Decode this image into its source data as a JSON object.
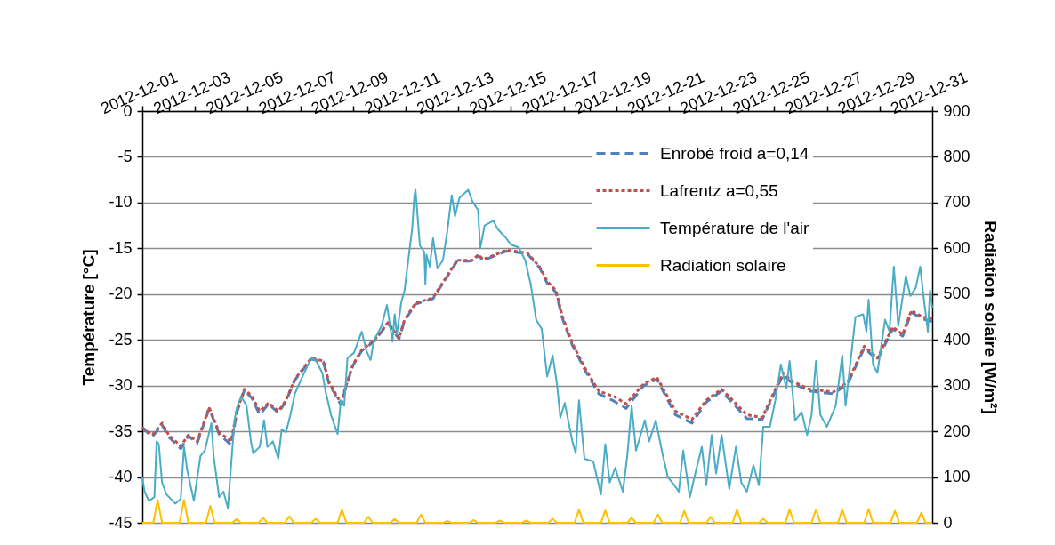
{
  "chart_data": {
    "type": "line",
    "ylabel": "Température [°C]",
    "y2label": "Radiation solaire [W/m²]",
    "xlim": [
      "2012-12-01",
      "2012-12-31"
    ],
    "xticks": [
      "2012-12-01",
      {
        "value": "2012-12-02",
        "label": null
      },
      "2012-12-03",
      {
        "value": "2012-12-04",
        "label": null
      },
      "2012-12-05",
      {
        "value": "2012-12-06",
        "label": null
      },
      "2012-12-07",
      {
        "value": "2012-12-08",
        "label": null
      },
      "2012-12-09",
      {
        "value": "2012-12-10",
        "label": null
      },
      "2012-12-11",
      {
        "value": "2012-12-12",
        "label": null
      },
      "2012-12-13",
      {
        "value": "2012-12-14",
        "label": null
      },
      "2012-12-15",
      {
        "value": "2012-12-16",
        "label": null
      },
      "2012-12-17",
      {
        "value": "2012-12-18",
        "label": null
      },
      "2012-12-19",
      {
        "value": "2012-12-20",
        "label": null
      },
      "2012-12-21",
      {
        "value": "2012-12-22",
        "label": null
      },
      "2012-12-23",
      {
        "value": "2012-12-24",
        "label": null
      },
      "2012-12-25",
      {
        "value": "2012-12-26",
        "label": null
      },
      "2012-12-27",
      {
        "value": "2012-12-28",
        "label": null
      },
      "2012-12-29",
      {
        "value": "2012-12-30",
        "label": null
      },
      "2012-12-31"
    ],
    "ylim": [
      -45,
      0
    ],
    "yticks": [
      -45,
      -40,
      -35,
      -30,
      -25,
      -20,
      -15,
      -10,
      -5,
      0
    ],
    "y2lim": [
      0,
      900
    ],
    "y2ticks": [
      0,
      100,
      200,
      300,
      400,
      500,
      600,
      700,
      800,
      900
    ],
    "grid": "y",
    "legend": "top right",
    "series": [
      {
        "name": "Enrobé froid a=0,14",
        "color": "#4f81bd",
        "line_style": "dashed",
        "x": [
          "2012-12-01T00:00",
          "2012-12-01T09:00",
          "2012-12-01T18:00",
          "2012-12-02T00:00",
          "2012-12-02T11:00",
          "2012-12-02T18:00",
          "2012-12-03T02:00",
          "2012-12-03T13:00",
          "2012-12-03T22:00",
          "2012-12-04T09:00",
          "2012-12-04T14:00",
          "2012-12-04T21:00",
          "2012-12-05T04:00",
          "2012-12-05T11:00",
          "2012-12-05T19:00",
          "2012-12-06T04:00",
          "2012-12-06T11:00",
          "2012-12-06T19:00",
          "2012-12-07T10:00",
          "2012-12-07T21:00",
          "2012-12-08T02:00",
          "2012-12-08T13:00",
          "2012-12-08T18:00",
          "2012-12-09T00:00",
          "2012-12-09T08:00",
          "2012-12-09T19:00",
          "2012-12-10T08:00",
          "2012-12-10T18:00",
          "2012-12-10T23:00",
          "2012-12-11T09:00",
          "2012-12-12T01:00",
          "2012-12-12T09:00",
          "2012-12-12T23:00",
          "2012-12-13T13:00",
          "2012-12-13T18:00",
          "2012-12-13T23:00",
          "2012-12-14T20:00",
          "2012-12-15T15:00",
          "2012-12-16T02:00",
          "2012-12-16T09:00",
          "2012-12-16T17:00",
          "2012-12-16T23:00",
          "2012-12-17T08:00",
          "2012-12-17T19:00",
          "2012-12-18T08:00",
          "2012-12-18T22:00",
          "2012-12-19T09:00",
          "2012-12-20T01:00",
          "2012-12-20T13:00",
          "2012-12-21T06:00",
          "2012-12-21T21:00",
          "2012-12-22T10:00",
          "2012-12-23T00:00",
          "2012-12-23T10:00",
          "2012-12-23T23:00",
          "2012-12-24T13:00",
          "2012-12-25T08:00",
          "2012-12-25T16:00",
          "2012-12-26T08:00",
          "2012-12-27T06:00",
          "2012-12-27T19:00",
          "2012-12-28T10:00",
          "2012-12-28T22:00",
          "2012-12-29T12:00",
          "2012-12-29T21:00",
          "2012-12-30T05:00",
          "2012-12-30T15:00",
          "2012-12-31T00:00"
        ],
        "values": [
          -34.6,
          -35.6,
          -34.3,
          -35.6,
          -36.9,
          -35.5,
          -36.3,
          -32.5,
          -35.3,
          -36.5,
          -33.0,
          -30.5,
          -31.4,
          -33.2,
          -32.0,
          -33.0,
          -31.7,
          -29.4,
          -27.1,
          -27.4,
          -29.7,
          -32.1,
          -30.0,
          -27.8,
          -26.2,
          -25.2,
          -23.2,
          -24.9,
          -22.9,
          -21.1,
          -20.5,
          -19.0,
          -16.4,
          -16.4,
          -15.8,
          -16.3,
          -15.3,
          -15.6,
          -17.1,
          -18.8,
          -19.8,
          -22.7,
          -25.6,
          -28.2,
          -30.9,
          -31.7,
          -32.5,
          -30.0,
          -29.3,
          -33.2,
          -34.1,
          -31.8,
          -30.6,
          -31.9,
          -33.6,
          -33.7,
          -28.8,
          -29.7,
          -30.6,
          -30.9,
          -29.8,
          -25.9,
          -27.2,
          -23.8,
          -24.6,
          -22.0,
          -22.7,
          -23.0
        ]
      },
      {
        "name": "Lafrentz a=0,55",
        "color": "#c0504d",
        "line_style": "dotted",
        "x": [
          "2012-12-01T00:00",
          "2012-12-01T09:00",
          "2012-12-01T18:00",
          "2012-12-02T00:00",
          "2012-12-02T11:00",
          "2012-12-02T18:00",
          "2012-12-03T02:00",
          "2012-12-03T13:00",
          "2012-12-03T22:00",
          "2012-12-04T09:00",
          "2012-12-04T14:00",
          "2012-12-04T21:00",
          "2012-12-05T04:00",
          "2012-12-05T11:00",
          "2012-12-05T19:00",
          "2012-12-06T04:00",
          "2012-12-06T11:00",
          "2012-12-06T19:00",
          "2012-12-07T10:00",
          "2012-12-07T21:00",
          "2012-12-08T02:00",
          "2012-12-08T13:00",
          "2012-12-08T18:00",
          "2012-12-09T00:00",
          "2012-12-09T08:00",
          "2012-12-09T19:00",
          "2012-12-10T08:00",
          "2012-12-10T18:00",
          "2012-12-10T23:00",
          "2012-12-11T09:00",
          "2012-12-12T01:00",
          "2012-12-12T09:00",
          "2012-12-12T23:00",
          "2012-12-13T13:00",
          "2012-12-13T18:00",
          "2012-12-13T23:00",
          "2012-12-14T20:00",
          "2012-12-15T15:00",
          "2012-12-16T02:00",
          "2012-12-16T09:00",
          "2012-12-16T17:00",
          "2012-12-16T23:00",
          "2012-12-17T08:00",
          "2012-12-17T19:00",
          "2012-12-18T08:00",
          "2012-12-18T22:00",
          "2012-12-19T09:00",
          "2012-12-20T01:00",
          "2012-12-20T13:00",
          "2012-12-21T06:00",
          "2012-12-21T21:00",
          "2012-12-22T10:00",
          "2012-12-23T00:00",
          "2012-12-23T10:00",
          "2012-12-23T23:00",
          "2012-12-24T13:00",
          "2012-12-25T08:00",
          "2012-12-25T16:00",
          "2012-12-26T08:00",
          "2012-12-27T06:00",
          "2012-12-27T19:00",
          "2012-12-28T10:00",
          "2012-12-28T22:00",
          "2012-12-29T12:00",
          "2012-12-29T21:00",
          "2012-12-30T05:00",
          "2012-12-30T15:00",
          "2012-12-31T00:00"
        ],
        "values": [
          -34.6,
          -35.4,
          -34.1,
          -35.4,
          -36.6,
          -35.4,
          -36.1,
          -32.4,
          -35.1,
          -36.1,
          -32.8,
          -30.4,
          -31.2,
          -32.8,
          -31.9,
          -32.8,
          -31.6,
          -29.3,
          -27.0,
          -27.3,
          -29.6,
          -31.9,
          -29.9,
          -27.7,
          -26.1,
          -25.1,
          -23.1,
          -24.8,
          -22.8,
          -21.0,
          -20.4,
          -18.9,
          -16.3,
          -16.3,
          -15.7,
          -16.2,
          -15.2,
          -15.5,
          -17.0,
          -18.6,
          -19.6,
          -22.5,
          -25.4,
          -28.0,
          -30.6,
          -31.2,
          -32.0,
          -29.8,
          -29.1,
          -32.8,
          -33.7,
          -31.6,
          -30.4,
          -31.6,
          -33.2,
          -33.5,
          -28.6,
          -29.5,
          -30.4,
          -30.7,
          -29.6,
          -25.7,
          -27.0,
          -23.6,
          -24.4,
          -21.8,
          -22.5,
          -22.7
        ]
      },
      {
        "name": "Température de l'air",
        "color": "#4bacc6",
        "line_style": "solid",
        "x": [
          "2012-12-01T00:00",
          "2012-12-01T02:00",
          "2012-12-01T06:00",
          "2012-12-01T11:00",
          "2012-12-01T13:00",
          "2012-12-01T15:00",
          "2012-12-01T18:00",
          "2012-12-01T22:00",
          "2012-12-02T06:00",
          "2012-12-02T11:00",
          "2012-12-02T14:00",
          "2012-12-02T17:00",
          "2012-12-02T23:00",
          "2012-12-03T05:00",
          "2012-12-03T09:00",
          "2012-12-03T15:00",
          "2012-12-03T17:00",
          "2012-12-03T22:00",
          "2012-12-04T02:00",
          "2012-12-04T06:00",
          "2012-12-04T12:00",
          "2012-12-04T14:00",
          "2012-12-04T18:00",
          "2012-12-04T23:00",
          "2012-12-05T03:00",
          "2012-12-05T05:00",
          "2012-12-05T11:00",
          "2012-12-05T15:00",
          "2012-12-05T18:00",
          "2012-12-05T23:00",
          "2012-12-06T04:00",
          "2012-12-06T07:00",
          "2012-12-06T11:00",
          "2012-12-06T15:00",
          "2012-12-06T19:00",
          "2012-12-07T02:00",
          "2012-12-07T10:00",
          "2012-12-07T14:00",
          "2012-12-07T20:00",
          "2012-12-07T23:00",
          "2012-12-08T04:00",
          "2012-12-08T10:00",
          "2012-12-08T13:00",
          "2012-12-08T16:00",
          "2012-12-08T19:00",
          "2012-12-09T01:00",
          "2012-12-09T08:00",
          "2012-12-09T12:00",
          "2012-12-09T16:00",
          "2012-12-09T19:00",
          "2012-12-10T02:00",
          "2012-12-10T07:00",
          "2012-12-10T12:00",
          "2012-12-10T14:00",
          "2012-12-10T16:00",
          "2012-12-10T20:00",
          "2012-12-10T23:00",
          "2012-12-11T06:00",
          "2012-12-11T08:00",
          "2012-12-11T09:00",
          "2012-12-11T13:00",
          "2012-12-11T17:00",
          "2012-12-11T18:00",
          "2012-12-11T19:00",
          "2012-12-11T22:00",
          "2012-12-12T01:00",
          "2012-12-12T05:00",
          "2012-12-12T10:00",
          "2012-12-12T14:00",
          "2012-12-12T18:00",
          "2012-12-12T21:00",
          "2012-12-13T01:00",
          "2012-12-13T09:00",
          "2012-12-13T13:00",
          "2012-12-13T18:00",
          "2012-12-13T20:00",
          "2012-12-14T00:00",
          "2012-12-14T08:00",
          "2012-12-14T12:00",
          "2012-12-14T19:00",
          "2012-12-15T00:00",
          "2012-12-15T07:00",
          "2012-12-15T13:00",
          "2012-12-15T18:00",
          "2012-12-15T23:00",
          "2012-12-16T04:00",
          "2012-12-16T09:00",
          "2012-12-16T14:00",
          "2012-12-16T18:00",
          "2012-12-16T21:00",
          "2012-12-17T01:00",
          "2012-12-17T08:00",
          "2012-12-17T11:00",
          "2012-12-17T14:00",
          "2012-12-17T19:00",
          "2012-12-18T03:00",
          "2012-12-18T10:00",
          "2012-12-18T14:00",
          "2012-12-18T18:00",
          "2012-12-18T23:00",
          "2012-12-19T06:00",
          "2012-12-19T10:00",
          "2012-12-19T14:00",
          "2012-12-19T18:00",
          "2012-12-20T02:00",
          "2012-12-20T06:00",
          "2012-12-20T12:00",
          "2012-12-20T18:00",
          "2012-12-20T23:00",
          "2012-12-21T05:00",
          "2012-12-21T09:00",
          "2012-12-21T13:00",
          "2012-12-21T19:00",
          "2012-12-22T00:00",
          "2012-12-22T06:00",
          "2012-12-22T10:00",
          "2012-12-22T15:00",
          "2012-12-22T19:00",
          "2012-12-23T00:00",
          "2012-12-23T07:00",
          "2012-12-23T13:00",
          "2012-12-23T18:00",
          "2012-12-23T23:00",
          "2012-12-24T05:00",
          "2012-12-24T10:00",
          "2012-12-24T14:00",
          "2012-12-24T20:00",
          "2012-12-25T01:00",
          "2012-12-25T06:00",
          "2012-12-25T11:00",
          "2012-12-25T14:00",
          "2012-12-25T19:00",
          "2012-12-26T01:00",
          "2012-12-26T06:00",
          "2012-12-26T10:00",
          "2012-12-26T14:00",
          "2012-12-26T18:00",
          "2012-12-27T00:00",
          "2012-12-27T08:00",
          "2012-12-27T14:00",
          "2012-12-27T17:00",
          "2012-12-28T02:00",
          "2012-12-28T09:00",
          "2012-12-28T12:00",
          "2012-12-28T14:00",
          "2012-12-28T18:00",
          "2012-12-28T22:00",
          "2012-12-29T05:00",
          "2012-12-29T09:00",
          "2012-12-29T13:00",
          "2012-12-29T17:00",
          "2012-12-30T00:00",
          "2012-12-30T04:00",
          "2012-12-30T09:00",
          "2012-12-30T13:00",
          "2012-12-30T16:00",
          "2012-12-30T20:00",
          "2012-12-30T22:00",
          "2012-12-31T00:00"
        ],
        "values": [
          -40.0,
          -41.6,
          -42.6,
          -42.2,
          -36.1,
          -36.4,
          -40.6,
          -41.9,
          -42.9,
          -42.4,
          -36.7,
          -39.3,
          -42.6,
          -37.7,
          -37.1,
          -34.1,
          -37.7,
          -42.2,
          -41.6,
          -43.4,
          -33.8,
          -32.5,
          -31.2,
          -32.2,
          -36.1,
          -37.4,
          -36.7,
          -33.8,
          -36.7,
          -36.1,
          -38.0,
          -34.8,
          -35.1,
          -33.2,
          -30.9,
          -29.0,
          -27.0,
          -27.2,
          -28.6,
          -30.6,
          -33.2,
          -35.3,
          -31.6,
          -32.2,
          -27.0,
          -26.4,
          -24.1,
          -26.1,
          -27.2,
          -25.1,
          -23.5,
          -21.2,
          -25.2,
          -22.2,
          -24.4,
          -20.9,
          -19.6,
          -12.8,
          -9.2,
          -8.6,
          -14.7,
          -15.4,
          -18.9,
          -15.7,
          -17.0,
          -13.9,
          -17.2,
          -16.3,
          -13.1,
          -9.2,
          -11.5,
          -9.5,
          -8.6,
          -9.9,
          -10.8,
          -15.0,
          -12.5,
          -12.0,
          -12.9,
          -13.8,
          -14.6,
          -14.9,
          -16.3,
          -18.9,
          -22.8,
          -23.8,
          -29.0,
          -26.7,
          -29.9,
          -33.5,
          -31.9,
          -36.1,
          -37.4,
          -31.6,
          -38.0,
          -38.3,
          -41.9,
          -36.4,
          -40.6,
          -39.0,
          -41.6,
          -37.7,
          -32.2,
          -37.1,
          -33.8,
          -36.1,
          -33.8,
          -37.4,
          -40.0,
          -40.9,
          -41.6,
          -37.1,
          -42.2,
          -39.6,
          -36.7,
          -40.9,
          -35.4,
          -39.6,
          -35.4,
          -41.3,
          -36.7,
          -40.6,
          -41.6,
          -38.7,
          -40.9,
          -34.5,
          -34.5,
          -31.6,
          -27.7,
          -30.3,
          -27.3,
          -33.8,
          -32.9,
          -35.4,
          -33.2,
          -27.3,
          -33.2,
          -34.5,
          -32.2,
          -26.7,
          -32.2,
          -22.5,
          -22.2,
          -24.1,
          -20.6,
          -27.7,
          -28.6,
          -22.8,
          -24.1,
          -17.0,
          -23.5,
          -18.0,
          -20.2,
          -19.3,
          -17.0,
          -20.2,
          -24.1,
          -19.6,
          -21.5
        ]
      },
      {
        "name": "Radiation solaire",
        "color": "#ffc000",
        "line_style": "solid",
        "axis": "y2",
        "x": [
          "2012-12-01T00:00",
          "2012-12-01T10:00",
          "2012-12-01T14:00",
          "2012-12-01T18:00",
          "2012-12-02T10:00",
          "2012-12-02T14:00",
          "2012-12-02T18:00",
          "2012-12-03T10:00",
          "2012-12-03T14:00",
          "2012-12-03T18:00",
          "2012-12-04T10:00",
          "2012-12-04T14:00",
          "2012-12-04T18:00",
          "2012-12-05T10:00",
          "2012-12-05T14:00",
          "2012-12-05T18:00",
          "2012-12-06T10:00",
          "2012-12-06T14:00",
          "2012-12-06T18:00",
          "2012-12-07T10:00",
          "2012-12-07T14:00",
          "2012-12-07T18:00",
          "2012-12-08T10:00",
          "2012-12-08T14:00",
          "2012-12-08T18:00",
          "2012-12-09T10:00",
          "2012-12-09T14:00",
          "2012-12-09T18:00",
          "2012-12-10T10:00",
          "2012-12-10T14:00",
          "2012-12-10T18:00",
          "2012-12-11T10:00",
          "2012-12-11T14:00",
          "2012-12-11T18:00",
          "2012-12-12T10:00",
          "2012-12-12T14:00",
          "2012-12-12T18:00",
          "2012-12-13T10:00",
          "2012-12-13T14:00",
          "2012-12-13T18:00",
          "2012-12-14T10:00",
          "2012-12-14T14:00",
          "2012-12-14T18:00",
          "2012-12-15T10:00",
          "2012-12-15T14:00",
          "2012-12-15T18:00",
          "2012-12-16T10:00",
          "2012-12-16T14:00",
          "2012-12-16T18:00",
          "2012-12-17T10:00",
          "2012-12-17T14:00",
          "2012-12-17T18:00",
          "2012-12-18T10:00",
          "2012-12-18T14:00",
          "2012-12-18T18:00",
          "2012-12-19T10:00",
          "2012-12-19T14:00",
          "2012-12-19T18:00",
          "2012-12-20T10:00",
          "2012-12-20T14:00",
          "2012-12-20T18:00",
          "2012-12-21T10:00",
          "2012-12-21T14:00",
          "2012-12-21T18:00",
          "2012-12-22T10:00",
          "2012-12-22T14:00",
          "2012-12-22T18:00",
          "2012-12-23T10:00",
          "2012-12-23T14:00",
          "2012-12-23T18:00",
          "2012-12-24T10:00",
          "2012-12-24T14:00",
          "2012-12-24T18:00",
          "2012-12-25T10:00",
          "2012-12-25T14:00",
          "2012-12-25T18:00",
          "2012-12-26T10:00",
          "2012-12-26T14:00",
          "2012-12-26T18:00",
          "2012-12-27T10:00",
          "2012-12-27T14:00",
          "2012-12-27T18:00",
          "2012-12-28T10:00",
          "2012-12-28T14:00",
          "2012-12-28T18:00",
          "2012-12-29T10:00",
          "2012-12-29T14:00",
          "2012-12-29T18:00",
          "2012-12-30T10:00",
          "2012-12-30T14:00",
          "2012-12-30T18:00",
          "2012-12-31T00:00"
        ],
        "values": [
          0,
          0,
          50,
          0,
          0,
          50,
          0,
          0,
          37,
          0,
          0,
          8,
          0,
          0,
          11,
          0,
          0,
          14,
          0,
          0,
          9,
          0,
          0,
          29,
          0,
          0,
          13,
          0,
          0,
          8,
          0,
          0,
          18,
          0,
          0,
          4,
          0,
          0,
          6,
          0,
          0,
          5,
          0,
          0,
          5,
          0,
          0,
          9,
          0,
          0,
          29,
          0,
          0,
          27,
          0,
          0,
          11,
          0,
          0,
          18,
          0,
          0,
          26,
          0,
          0,
          13,
          0,
          0,
          29,
          0,
          0,
          9,
          0,
          0,
          29,
          0,
          0,
          29,
          0,
          0,
          29,
          0,
          0,
          30,
          0,
          0,
          26,
          0,
          0,
          22,
          0,
          0
        ]
      }
    ]
  }
}
